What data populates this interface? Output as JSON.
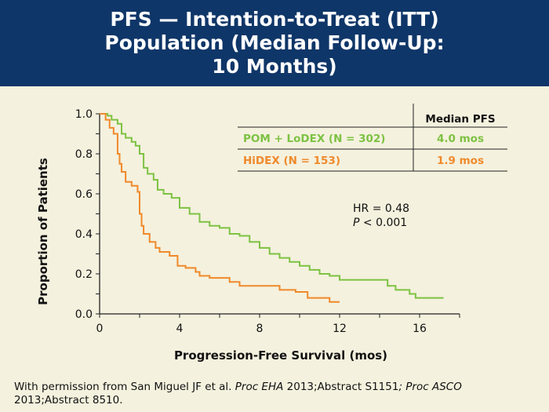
{
  "header": {
    "title_lines": [
      "PFS — Intention-to-Treat (ITT)",
      "Population (Median Follow-Up:",
      "10 Months)"
    ]
  },
  "colors": {
    "header_bg": "#0f3668",
    "background": "#f4f1de",
    "series_green": "#7dc242",
    "series_orange": "#f0892a"
  },
  "chart_data": {
    "type": "line",
    "xlabel": "Progression-Free Survival (mos)",
    "ylabel": "Proportion of Patients",
    "xlim": [
      0,
      18
    ],
    "ylim": [
      0,
      1.0
    ],
    "x_ticks": [
      "0",
      "4",
      "8",
      "12",
      "16"
    ],
    "y_ticks": [
      "0.0",
      "0.2",
      "0.4",
      "0.6",
      "0.8",
      "1.0"
    ],
    "grid": false,
    "series": [
      {
        "name": "POM + LoDEX (N = 302)",
        "color": "#7dc242",
        "points": [
          [
            0,
            1.0
          ],
          [
            0.4,
            0.99
          ],
          [
            0.6,
            0.97
          ],
          [
            0.9,
            0.95
          ],
          [
            1.1,
            0.9
          ],
          [
            1.3,
            0.88
          ],
          [
            1.6,
            0.86
          ],
          [
            1.8,
            0.84
          ],
          [
            2.0,
            0.8
          ],
          [
            2.2,
            0.73
          ],
          [
            2.4,
            0.7
          ],
          [
            2.7,
            0.67
          ],
          [
            2.9,
            0.62
          ],
          [
            3.2,
            0.6
          ],
          [
            3.6,
            0.58
          ],
          [
            4.0,
            0.53
          ],
          [
            4.5,
            0.5
          ],
          [
            5.0,
            0.46
          ],
          [
            5.5,
            0.44
          ],
          [
            6.0,
            0.43
          ],
          [
            6.5,
            0.4
          ],
          [
            7.0,
            0.39
          ],
          [
            7.5,
            0.36
          ],
          [
            8.0,
            0.33
          ],
          [
            8.5,
            0.3
          ],
          [
            9.0,
            0.28
          ],
          [
            9.5,
            0.26
          ],
          [
            10.0,
            0.24
          ],
          [
            10.5,
            0.22
          ],
          [
            11.0,
            0.2
          ],
          [
            11.5,
            0.19
          ],
          [
            12.0,
            0.17
          ],
          [
            13.0,
            0.17
          ],
          [
            14.0,
            0.17
          ],
          [
            14.4,
            0.14
          ],
          [
            14.8,
            0.12
          ],
          [
            15.5,
            0.1
          ],
          [
            15.8,
            0.08
          ],
          [
            17.2,
            0.08
          ]
        ]
      },
      {
        "name": "HiDEX (N = 153)",
        "color": "#f0892a",
        "points": [
          [
            0,
            1.0
          ],
          [
            0.3,
            0.97
          ],
          [
            0.5,
            0.93
          ],
          [
            0.7,
            0.9
          ],
          [
            0.9,
            0.8
          ],
          [
            1.0,
            0.75
          ],
          [
            1.1,
            0.71
          ],
          [
            1.3,
            0.66
          ],
          [
            1.6,
            0.64
          ],
          [
            1.9,
            0.61
          ],
          [
            2.0,
            0.5
          ],
          [
            2.1,
            0.44
          ],
          [
            2.2,
            0.4
          ],
          [
            2.5,
            0.36
          ],
          [
            2.8,
            0.33
          ],
          [
            3.0,
            0.31
          ],
          [
            3.5,
            0.29
          ],
          [
            3.9,
            0.24
          ],
          [
            4.3,
            0.23
          ],
          [
            4.8,
            0.21
          ],
          [
            5.0,
            0.19
          ],
          [
            5.5,
            0.18
          ],
          [
            6.0,
            0.18
          ],
          [
            6.5,
            0.16
          ],
          [
            7.0,
            0.14
          ],
          [
            8.5,
            0.14
          ],
          [
            9.0,
            0.12
          ],
          [
            9.8,
            0.11
          ],
          [
            10.4,
            0.08
          ],
          [
            11.5,
            0.06
          ],
          [
            12.0,
            0.06
          ]
        ]
      }
    ],
    "legend_table": {
      "header": "Median PFS",
      "rows": [
        {
          "label": "POM + LoDEX (N = 302)",
          "value": "4.0 mos",
          "color": "#7dc242"
        },
        {
          "label": "HiDEX (N = 153)",
          "value": "1.9 mos",
          "color": "#f0892a"
        }
      ]
    },
    "annotations": {
      "hr": "HR = 0.48",
      "p_label": "P",
      "p_value": " < 0.001"
    }
  },
  "footer": {
    "text_a": "With permission from San Miguel JF et al. ",
    "journal_a": "Proc EHA",
    "text_b": " 2013;Abstract S1151",
    "journal_b": "; Proc ASCO",
    "text_c": " 2013;Abstract 8510."
  }
}
